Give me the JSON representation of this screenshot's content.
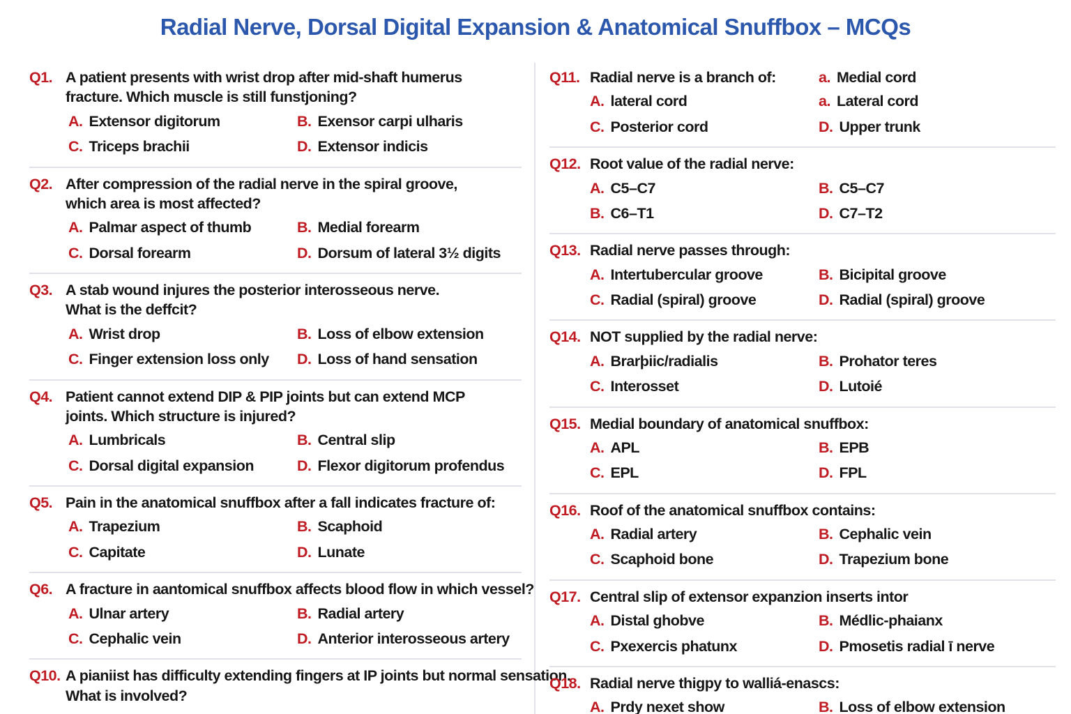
{
  "title": "Radial Nerve, Dorsal Digital Expansion & Anatomical Snuffbox – MCQs",
  "colors": {
    "title_blue": "#2b57ac",
    "label_red": "#c01a22",
    "text": "#161616",
    "divider": "#e1e1ea",
    "page_bg": "#ffffff"
  },
  "left_column": {
    "questions": [
      {
        "num": "Q1.",
        "text": "A patient presents with wrist drop after mid-shaft humerus\nfracture. Which muscle is still funstjoning?",
        "options": [
          {
            "label": "A.",
            "text": "Extensor digitorum"
          },
          {
            "label": "B.",
            "text": "Exensor carpi ulharis"
          },
          {
            "label": "C.",
            "text": "Triceps brachii"
          },
          {
            "label": "D.",
            "text": "Extensor indicis"
          }
        ]
      },
      {
        "num": "Q2.",
        "text": "After compression of the radial nerve in the spiral groove,\nwhich area is most affected?",
        "options": [
          {
            "label": "A.",
            "text": "Palmar aspect of thumb"
          },
          {
            "label": "B.",
            "text": "Medial forearm"
          },
          {
            "label": "C.",
            "text": "Dorsal forearm"
          },
          {
            "label": "D.",
            "text": "Dorsum of lateral 3½ digits"
          }
        ]
      },
      {
        "num": "Q3.",
        "text": "A stab wound injures the posterior interosseous nerve.\nWhat is the deffcit?",
        "options": [
          {
            "label": "A.",
            "text": "Wrist drop"
          },
          {
            "label": "B.",
            "text": "Loss of elbow extension"
          },
          {
            "label": "C.",
            "text": "Finger extension loss only"
          },
          {
            "label": "D.",
            "text": "Loss of hand sensation"
          }
        ]
      },
      {
        "num": "Q4.",
        "text": "Patient cannot extend DIP & PIP joints but can extend MCP\njoints. Which structure is injured?",
        "options": [
          {
            "label": "A.",
            "text": "Lumbricals"
          },
          {
            "label": "B.",
            "text": "Central slip"
          },
          {
            "label": "C.",
            "text": "Dorsal digital expansion"
          },
          {
            "label": "D.",
            "text": "Flexor digitorum profendus"
          }
        ]
      },
      {
        "num": "Q5.",
        "text": "Pain in the anatomical snuffbox after a fall indicates fracture of:",
        "options": [
          {
            "label": "A.",
            "text": "Trapezium"
          },
          {
            "label": "B.",
            "text": "Scaphoid"
          },
          {
            "label": "C.",
            "text": "Capitate"
          },
          {
            "label": "D.",
            "text": "Lunate"
          }
        ]
      },
      {
        "num": "Q6.",
        "text": "A fracture in aantomical snuffbox affects blood flow in which vessel?",
        "options": [
          {
            "label": "A.",
            "text": "Ulnar artery"
          },
          {
            "label": "B.",
            "text": "Radial artery"
          },
          {
            "label": "C.",
            "text": "Cephalic vein"
          },
          {
            "label": "D.",
            "text": "Anterior interosseous artery"
          }
        ]
      },
      {
        "num": "Q10.",
        "text": "A pianiist has difficulty extending fingers at IP joints but normal sensation.\nWhat is involved?",
        "options": []
      }
    ]
  },
  "right_column": {
    "questions": [
      {
        "num": "Q11.",
        "text": "Radial nerve is a branch of:",
        "inline_option": {
          "label": "a.",
          "text": "Medial cord"
        },
        "options": [
          {
            "label": "A.",
            "text": "lateral cord"
          },
          {
            "label": "a.",
            "text": "Lateral cord"
          },
          {
            "label": "C.",
            "text": "Posterior cord"
          },
          {
            "label": "D.",
            "text": "Upper trunk"
          }
        ]
      },
      {
        "num": "Q12.",
        "text": "Root value of the radial nerve:",
        "options": [
          {
            "label": "A.",
            "text": "C5–C7"
          },
          {
            "label": "B.",
            "text": "C5–C7"
          },
          {
            "label": "B.",
            "text": "C6–T1"
          },
          {
            "label": "D.",
            "text": "C7–T2"
          }
        ]
      },
      {
        "num": "Q13.",
        "text": "Radial nerve passes through:",
        "options": [
          {
            "label": "A.",
            "text": "Intertubercular groove"
          },
          {
            "label": "B.",
            "text": "Bicipital groove"
          },
          {
            "label": "C.",
            "text": "Radial (spiral) groove"
          },
          {
            "label": "D.",
            "text": "Radial (spiral) groove"
          }
        ]
      },
      {
        "num": "Q14.",
        "text": "NOT supplied by the radial nerve:",
        "options": [
          {
            "label": "A.",
            "text": "Brarþiic/radialis"
          },
          {
            "label": "B.",
            "text": "Prohator teres"
          },
          {
            "label": "C.",
            "text": "Interosset"
          },
          {
            "label": "D.",
            "text": "Lutoié"
          }
        ]
      },
      {
        "num": "Q15.",
        "text": "Medial boundary of anatomical snuffbox:",
        "options": [
          {
            "label": "A.",
            "text": "APL"
          },
          {
            "label": "B.",
            "text": "EPB"
          },
          {
            "label": "C.",
            "text": "EPL"
          },
          {
            "label": "D.",
            "text": "FPL"
          }
        ]
      },
      {
        "num": "Q16.",
        "text": "Roof of the anatomical snuffbox contains:",
        "options": [
          {
            "label": "A.",
            "text": "Radial artery"
          },
          {
            "label": "B.",
            "text": "Cephalic vein"
          },
          {
            "label": "C.",
            "text": "Scaphoid bone"
          },
          {
            "label": "D.",
            "text": "Trapezium bone"
          }
        ]
      },
      {
        "num": "Q17.",
        "text": "Central slip of extensor expanzion inserts intor",
        "options": [
          {
            "label": "A.",
            "text": "Distal ghobve"
          },
          {
            "label": "B.",
            "text": "Médlic-phaianx"
          },
          {
            "label": "C.",
            "text": "Pxexercis phatunx"
          },
          {
            "label": "D.",
            "text": "Pmosetis radial ī nerve"
          }
        ]
      },
      {
        "num": "Q18.",
        "text": "Radial nerve thigpy to walliá-enascs:",
        "options": [
          {
            "label": "A.",
            "text": "Prdy nexet show"
          },
          {
            "label": "B.",
            "text": "Loss of elbow extension"
          }
        ]
      }
    ]
  }
}
